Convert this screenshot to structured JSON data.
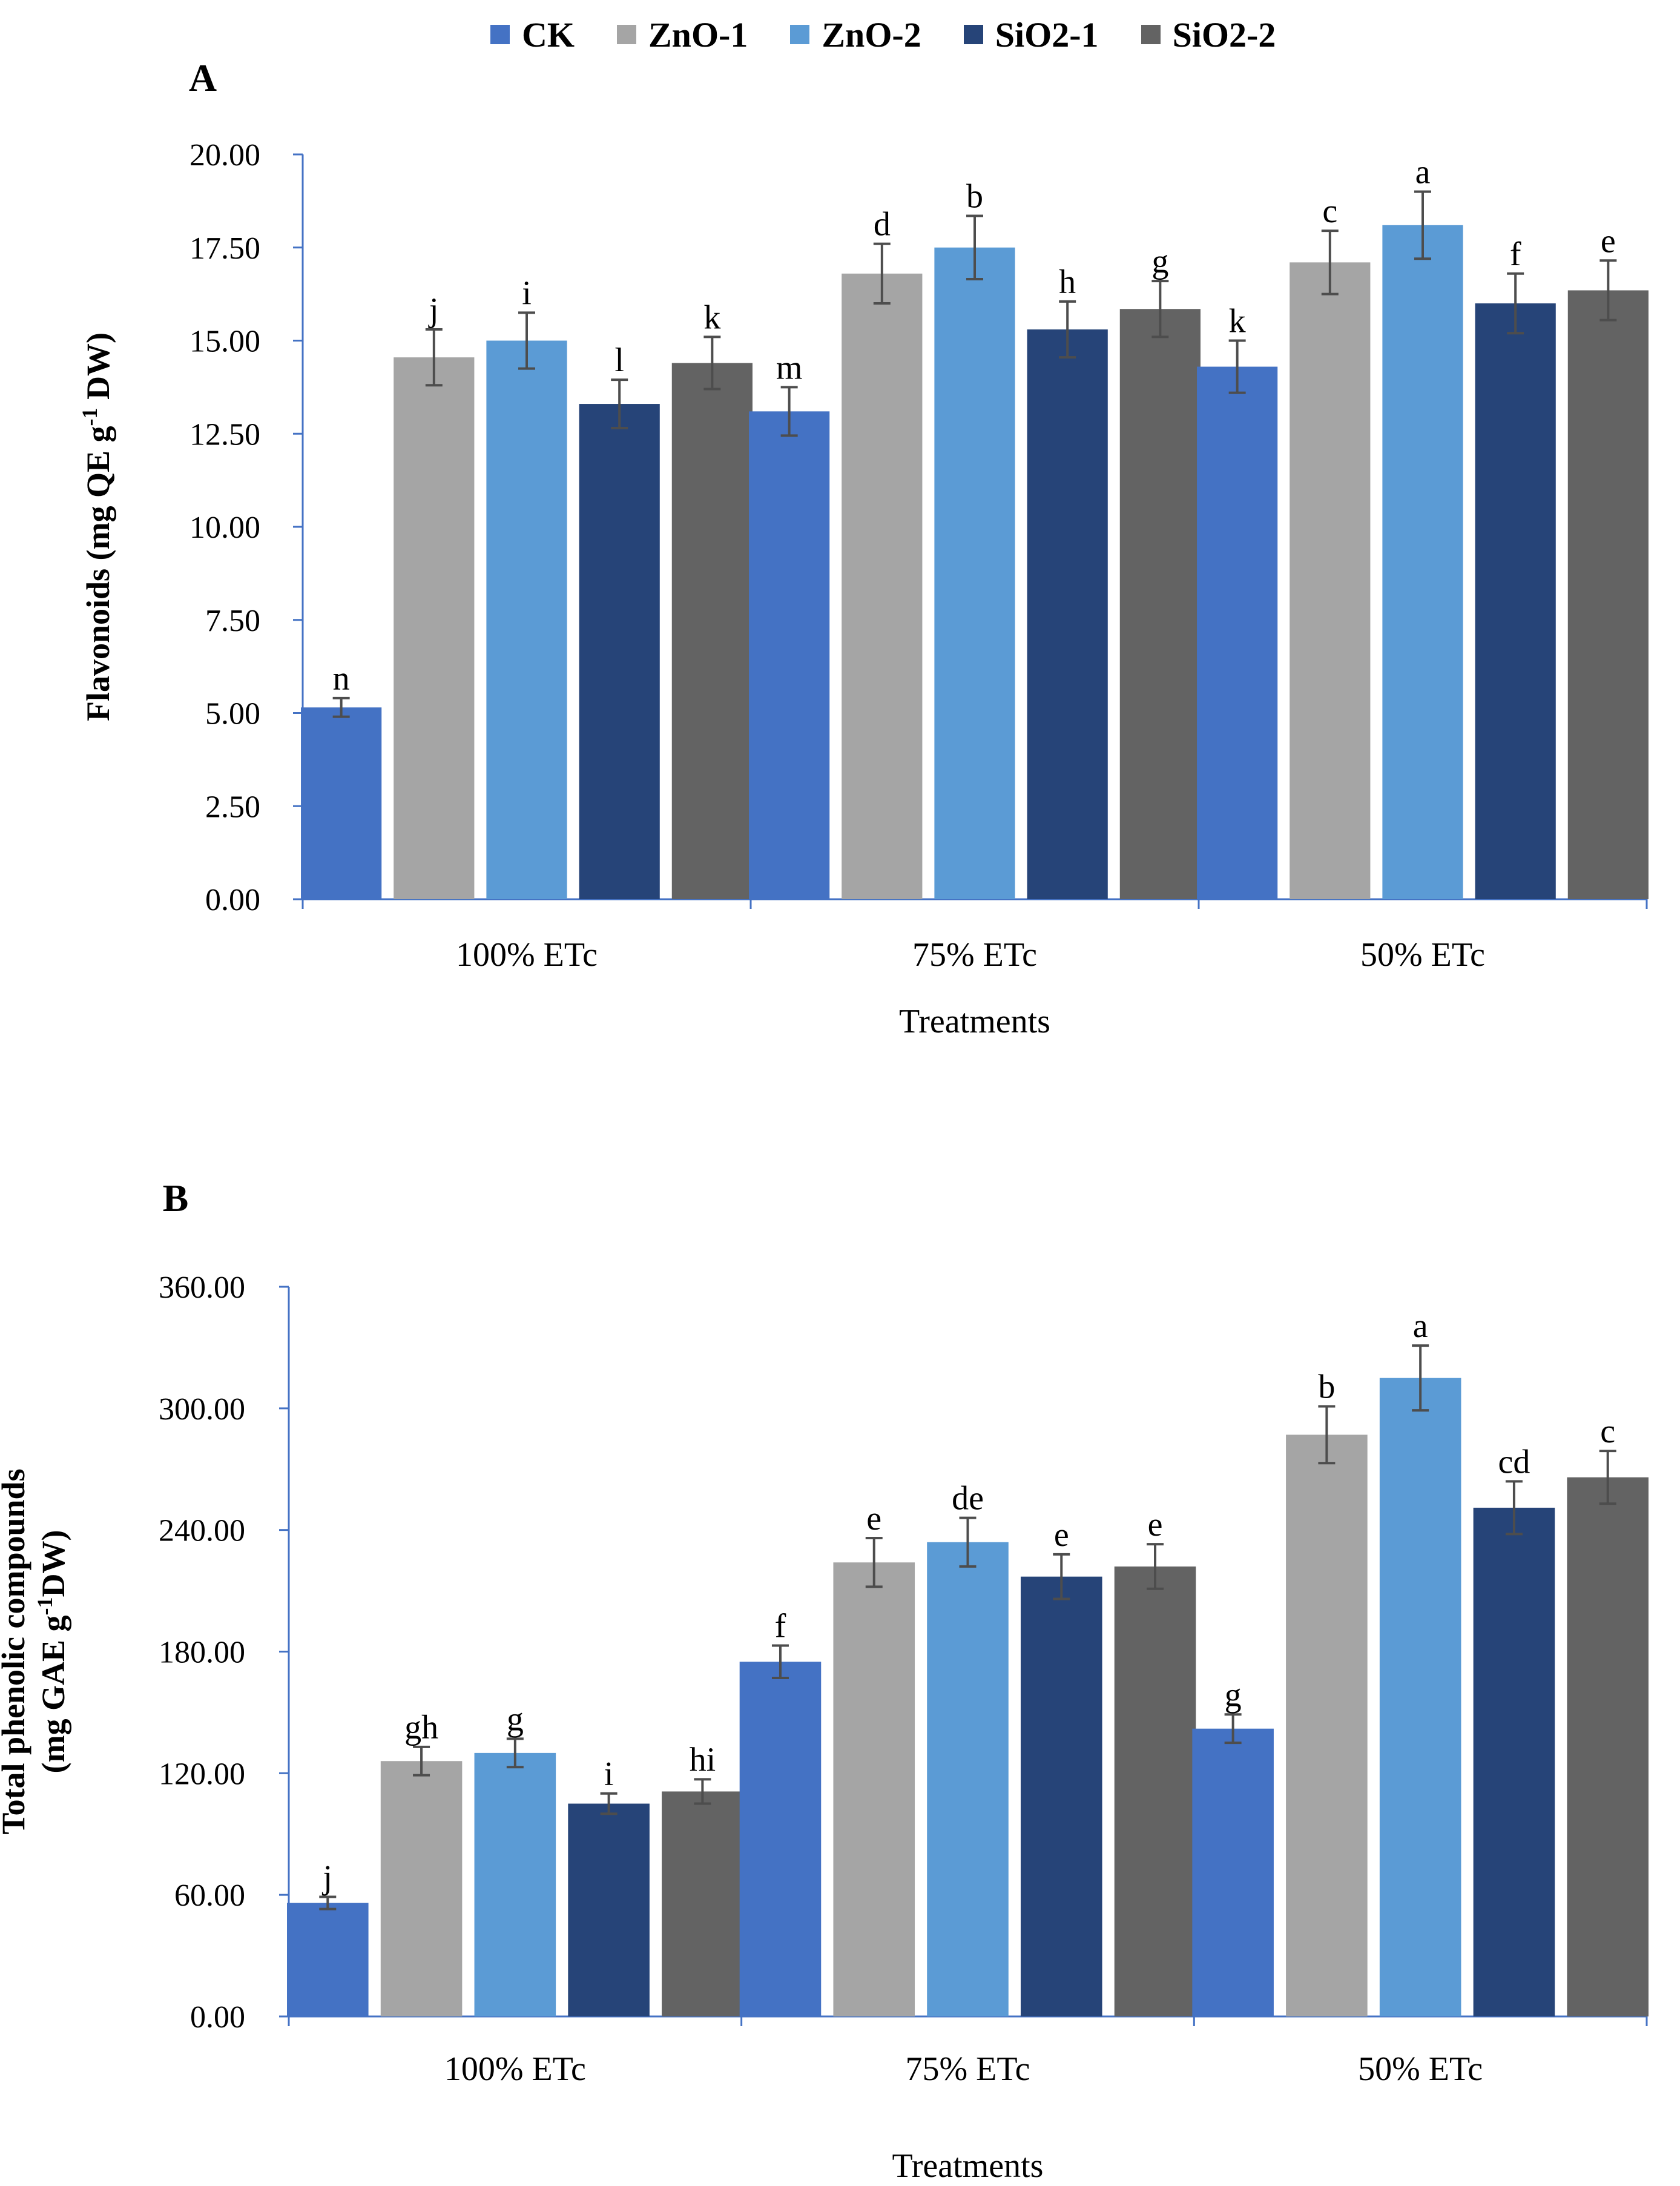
{
  "legend": {
    "items": [
      {
        "label": "CK",
        "color": "#4472C4"
      },
      {
        "label": "ZnO-1",
        "color": "#A5A5A5"
      },
      {
        "label": "ZnO-2",
        "color": "#5B9BD5"
      },
      {
        "label": "SiO2-1",
        "color": "#264478"
      },
      {
        "label": "SiO2-2",
        "color": "#636363"
      }
    ]
  },
  "chart_data": [
    {
      "type": "bar",
      "panel_label": "A",
      "categories": [
        "100% ETc",
        "75% ETc",
        "50% ETc"
      ],
      "xlabel": "Treatments",
      "ylabel_lines": [
        "Flavonoids (mg QE g",
        "-1",
        " DW)"
      ],
      "ylim": [
        0,
        20
      ],
      "yticks": [
        "0.00",
        "2.50",
        "5.00",
        "7.50",
        "10.00",
        "12.50",
        "15.00",
        "17.50",
        "20.00"
      ],
      "ytick_values": [
        0,
        2.5,
        5,
        7.5,
        10,
        12.5,
        15,
        17.5,
        20
      ],
      "series": [
        {
          "name": "CK",
          "values": [
            5.15,
            13.1,
            14.3
          ],
          "errors": [
            0.25,
            0.65,
            0.7
          ],
          "letters": [
            "n",
            "m",
            "k"
          ]
        },
        {
          "name": "ZnO-1",
          "values": [
            14.55,
            16.8,
            17.1
          ],
          "errors": [
            0.75,
            0.8,
            0.85
          ],
          "letters": [
            "j",
            "d",
            "c"
          ]
        },
        {
          "name": "ZnO-2",
          "values": [
            15.0,
            17.5,
            18.1
          ],
          "errors": [
            0.75,
            0.85,
            0.9
          ],
          "letters": [
            "i",
            "b",
            "a"
          ]
        },
        {
          "name": "SiO2-1",
          "values": [
            13.3,
            15.3,
            16.0
          ],
          "errors": [
            0.65,
            0.75,
            0.8
          ],
          "letters": [
            "l",
            "h",
            "f"
          ]
        },
        {
          "name": "SiO2-2",
          "values": [
            14.4,
            15.85,
            16.35
          ],
          "errors": [
            0.7,
            0.75,
            0.8
          ],
          "letters": [
            "k",
            "g",
            "e"
          ]
        }
      ]
    },
    {
      "type": "bar",
      "panel_label": "B",
      "categories": [
        "100% ETc",
        "75% ETc",
        "50% ETc"
      ],
      "xlabel": "Treatments",
      "ylabel_lines": [
        "Total phenolic compounds",
        "(mg GAE g",
        "-1",
        "DW)"
      ],
      "ylim": [
        0,
        360
      ],
      "yticks": [
        "0.00",
        "60.00",
        "120.00",
        "180.00",
        "240.00",
        "300.00",
        "360.00"
      ],
      "ytick_values": [
        0,
        60,
        120,
        180,
        240,
        300,
        360
      ],
      "series": [
        {
          "name": "CK",
          "values": [
            56,
            175,
            142
          ],
          "errors": [
            3,
            8,
            7
          ],
          "letters": [
            "j",
            "f",
            "g"
          ]
        },
        {
          "name": "ZnO-1",
          "values": [
            126,
            224,
            287
          ],
          "errors": [
            7,
            12,
            14
          ],
          "letters": [
            "gh",
            "e",
            "b"
          ]
        },
        {
          "name": "ZnO-2",
          "values": [
            130,
            234,
            315
          ],
          "errors": [
            7,
            12,
            16
          ],
          "letters": [
            "g",
            "de",
            "a"
          ]
        },
        {
          "name": "SiO2-1",
          "values": [
            105,
            217,
            251
          ],
          "errors": [
            5,
            11,
            13
          ],
          "letters": [
            "i",
            "e",
            "cd"
          ]
        },
        {
          "name": "SiO2-2",
          "values": [
            111,
            222,
            266
          ],
          "errors": [
            6,
            11,
            13
          ],
          "letters": [
            "hi",
            "e",
            "c"
          ]
        }
      ]
    }
  ]
}
